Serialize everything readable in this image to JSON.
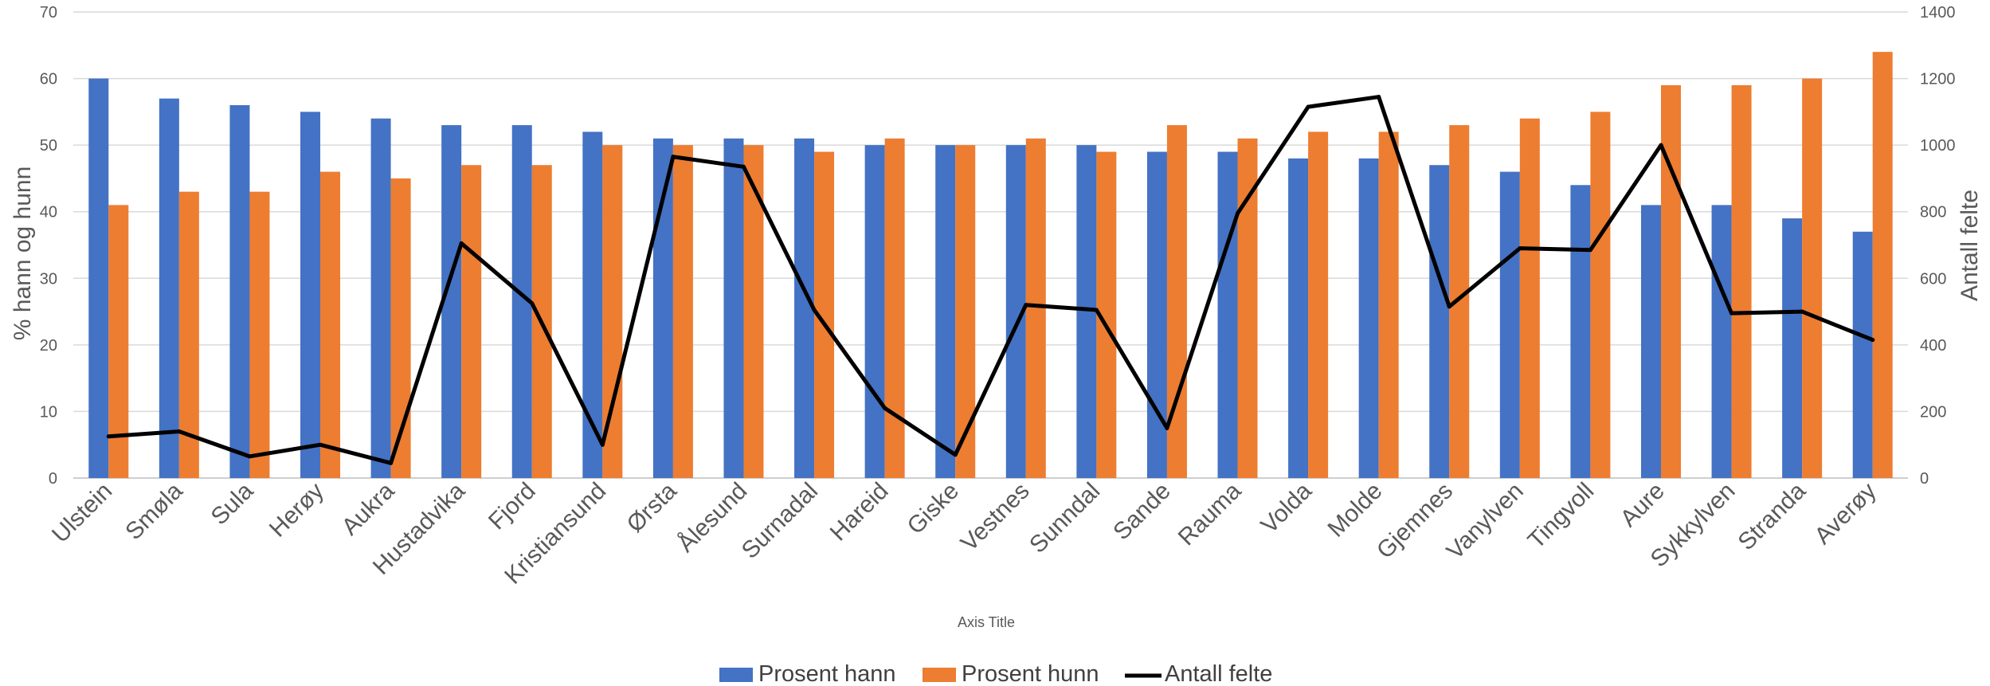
{
  "chart_data": {
    "type": "bar",
    "title": "",
    "xlabel": "Axis Title",
    "ylabel": "% hann og hunn",
    "y2label": "Antall felte",
    "ylim": [
      0,
      70
    ],
    "y2lim": [
      0,
      1400
    ],
    "yticks": [
      0,
      10,
      20,
      30,
      40,
      50,
      60,
      70
    ],
    "y2ticks": [
      0,
      200,
      400,
      600,
      800,
      1000,
      1200,
      1400
    ],
    "grid": true,
    "legend_position": "bottom",
    "categories": [
      "Ulstein",
      "Smøla",
      "Sula",
      "Herøy",
      "Aukra",
      "Hustadvika",
      "Fjord",
      "Kristiansund",
      "Ørsta",
      "Ålesund",
      "Surnadal",
      "Hareid",
      "Giske",
      "Vestnes",
      "Sunndal",
      "Sande",
      "Rauma",
      "Volda",
      "Molde",
      "Gjemnes",
      "Vanylven",
      "Tingvoll",
      "Aure",
      "Sykkylven",
      "Stranda",
      "Averøy"
    ],
    "series": [
      {
        "name": "Prosent hann",
        "type": "bar",
        "axis": "left",
        "color": "#4472C4",
        "values": [
          60,
          57,
          56,
          55,
          54,
          53,
          53,
          52,
          51,
          51,
          51,
          50,
          50,
          50,
          50,
          49,
          49,
          48,
          48,
          47,
          46,
          44,
          41,
          41,
          39,
          37
        ]
      },
      {
        "name": "Prosent hunn",
        "type": "bar",
        "axis": "left",
        "color": "#ED7D31",
        "values": [
          41,
          43,
          43,
          46,
          45,
          47,
          47,
          50,
          50,
          50,
          49,
          51,
          50,
          51,
          49,
          53,
          51,
          52,
          52,
          53,
          54,
          55,
          59,
          59,
          60,
          64
        ]
      },
      {
        "name": "Antall felte",
        "type": "line",
        "axis": "right",
        "color": "#000000",
        "values": [
          125,
          140,
          65,
          100,
          45,
          705,
          525,
          100,
          965,
          935,
          505,
          210,
          70,
          520,
          505,
          150,
          795,
          1115,
          1145,
          515,
          690,
          685,
          1000,
          495,
          500,
          415
        ]
      }
    ]
  }
}
